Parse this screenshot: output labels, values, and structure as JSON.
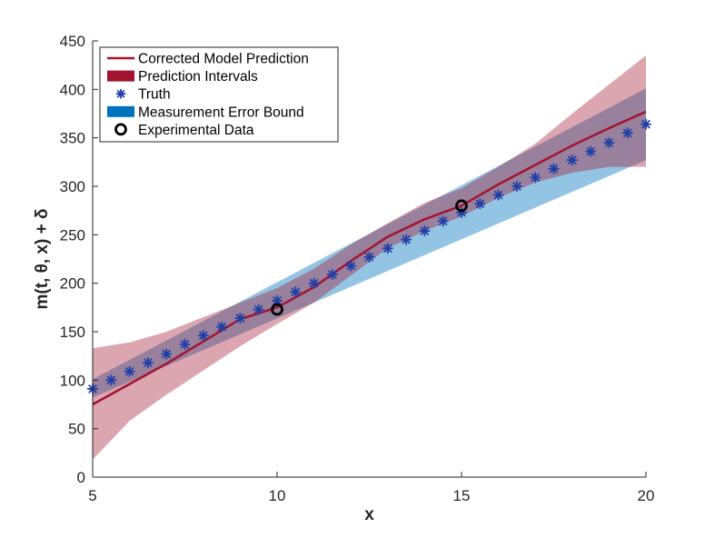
{
  "chart_data": {
    "type": "line",
    "xlabel": "x",
    "ylabel": "m(t, θ, x) + δ",
    "xlim": [
      5,
      20
    ],
    "ylim": [
      0,
      450
    ],
    "xticks": [
      5,
      10,
      15,
      20
    ],
    "yticks": [
      0,
      50,
      100,
      150,
      200,
      250,
      300,
      350,
      400,
      450
    ],
    "grid": false,
    "legend_position": "top-left",
    "colors": {
      "prediction_line": "#a2142f",
      "prediction_band": "#a2142f",
      "truth_marker": "#1f3fa6",
      "measurement_band": "#0072bd",
      "experimental_data": "#000000"
    },
    "legend": [
      {
        "label": "Corrected Model Prediction",
        "kind": "line"
      },
      {
        "label": "Prediction Intervals",
        "kind": "patch-red"
      },
      {
        "label": "Truth",
        "kind": "star"
      },
      {
        "label": "Measurement Error Bound",
        "kind": "patch-blue"
      },
      {
        "label": "Experimental Data",
        "kind": "circle"
      }
    ],
    "series": [
      {
        "name": "Corrected Model Prediction",
        "x": [
          5,
          6,
          7,
          8,
          9,
          10,
          11,
          12,
          13,
          14,
          15,
          16,
          17,
          18,
          19,
          20
        ],
        "y": [
          75,
          96,
          117,
          140,
          163,
          175,
          196,
          223,
          248,
          266,
          280,
          302,
          322,
          342,
          360,
          377
        ]
      },
      {
        "name": "Prediction Intervals",
        "x": [
          5,
          6,
          7,
          8,
          9,
          10,
          11,
          12,
          13,
          14,
          15,
          16,
          17,
          18,
          19,
          20
        ],
        "lower": [
          18,
          58,
          85,
          110,
          135,
          158,
          180,
          208,
          236,
          254,
          269,
          288,
          304,
          314,
          320,
          320
        ],
        "upper": [
          133,
          139,
          150,
          165,
          180,
          195,
          215,
          240,
          262,
          283,
          298,
          320,
          344,
          375,
          405,
          435
        ]
      },
      {
        "name": "Truth",
        "x": [
          5,
          5.5,
          6,
          6.5,
          7,
          7.5,
          8,
          8.5,
          9,
          9.5,
          10,
          10.5,
          11,
          11.5,
          12,
          12.5,
          13,
          13.5,
          14,
          14.5,
          15,
          15.5,
          16,
          16.5,
          17,
          17.5,
          18,
          18.5,
          19,
          19.5,
          20
        ],
        "y": [
          91,
          100,
          109,
          118,
          127,
          137,
          146,
          155,
          164,
          173,
          182,
          191,
          200,
          209,
          218,
          227,
          236,
          245,
          254,
          264,
          273,
          282,
          291,
          300,
          309,
          318,
          327,
          336,
          345,
          355,
          364
        ]
      },
      {
        "name": "Measurement Error Bound",
        "x": [
          5,
          20
        ],
        "lower": [
          82,
          327
        ],
        "upper": [
          101,
          401
        ]
      },
      {
        "name": "Experimental Data",
        "x": [
          10,
          15
        ],
        "y": [
          173,
          280
        ]
      }
    ]
  }
}
